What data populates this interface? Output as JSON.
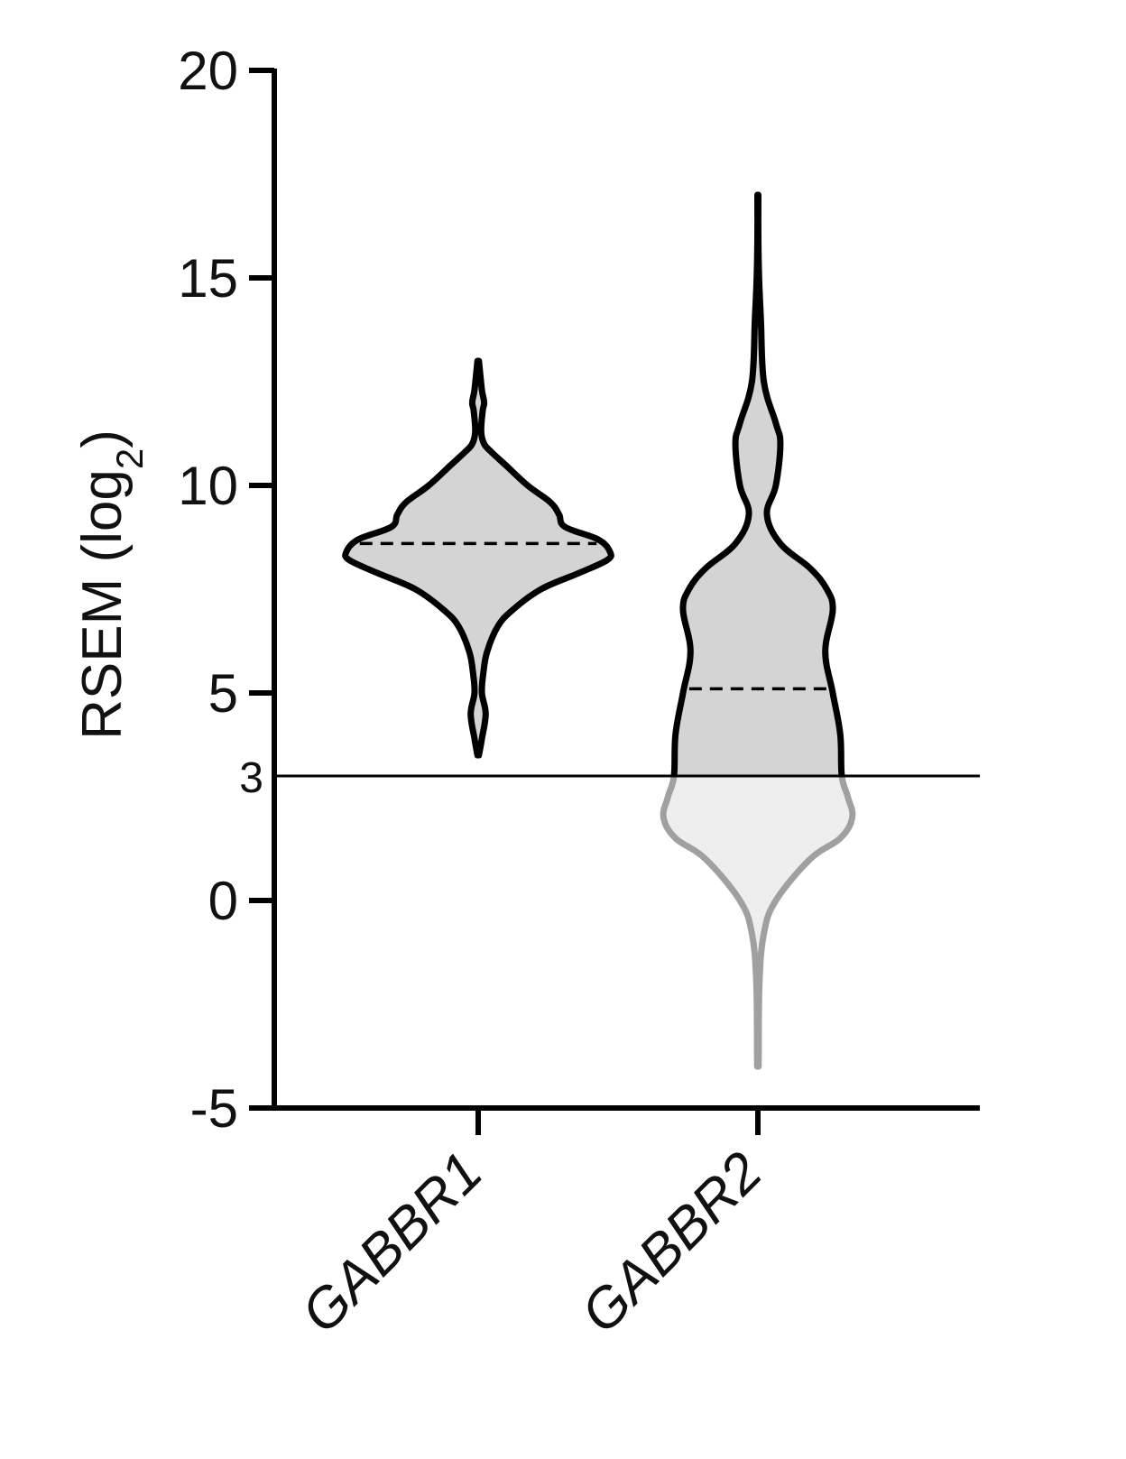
{
  "chart_data": {
    "type": "violin",
    "ylabel": {
      "main": "RSEM (log",
      "sub": "2",
      "close": ")"
    },
    "ylim": [
      -5,
      20
    ],
    "yticks": [
      "20",
      "15",
      "10",
      "5",
      "0",
      "-5"
    ],
    "threshold": {
      "value": 3,
      "label": "3"
    },
    "categories": [
      "GABBR1",
      "GABBR2"
    ],
    "series": [
      {
        "category": "GABBR1",
        "median": 8.6,
        "range": [
          3.5,
          13.0
        ],
        "density": [
          [
            3.5,
            0.5
          ],
          [
            3.9,
            2.5
          ],
          [
            4.5,
            5
          ],
          [
            5.0,
            2.5
          ],
          [
            5.5,
            3.5
          ],
          [
            6.0,
            6
          ],
          [
            6.6,
            13
          ],
          [
            7.0,
            23
          ],
          [
            7.5,
            42
          ],
          [
            7.9,
            68
          ],
          [
            8.2,
            86
          ],
          [
            8.4,
            88
          ],
          [
            8.7,
            80
          ],
          [
            9.0,
            58
          ],
          [
            9.3,
            54
          ],
          [
            9.6,
            48
          ],
          [
            10.0,
            33
          ],
          [
            10.5,
            18
          ],
          [
            10.8,
            9
          ],
          [
            11.0,
            4
          ],
          [
            11.3,
            2
          ],
          [
            11.8,
            3
          ],
          [
            12.0,
            4
          ],
          [
            12.3,
            2.5
          ],
          [
            13.0,
            0.5
          ]
        ],
        "fill": "#d4d4d4",
        "stroke": "#000000"
      },
      {
        "category": "GABBR2",
        "median": 5.1,
        "range": [
          -4.0,
          17.0
        ],
        "density": [
          [
            -4.0,
            0.5
          ],
          [
            -2.0,
            1
          ],
          [
            -0.8,
            4
          ],
          [
            0.0,
            12
          ],
          [
            1.0,
            35
          ],
          [
            1.5,
            55
          ],
          [
            2.0,
            63
          ],
          [
            2.5,
            60
          ],
          [
            3.0,
            56
          ],
          [
            4.0,
            55
          ],
          [
            5.0,
            50
          ],
          [
            6.0,
            45
          ],
          [
            7.0,
            50
          ],
          [
            7.5,
            46
          ],
          [
            8.0,
            35
          ],
          [
            8.6,
            15
          ],
          [
            9.3,
            6
          ],
          [
            10.0,
            12
          ],
          [
            11.0,
            15
          ],
          [
            11.5,
            12
          ],
          [
            12.5,
            4
          ],
          [
            14.0,
            2
          ],
          [
            15.0,
            0.8
          ],
          [
            16.0,
            0.3
          ],
          [
            17.0,
            0.3
          ]
        ],
        "fill_above": "#d4d4d4",
        "fill_below": "#eeeeee",
        "stroke_above": "#000000",
        "stroke_below": "#a0a0a0"
      }
    ]
  }
}
